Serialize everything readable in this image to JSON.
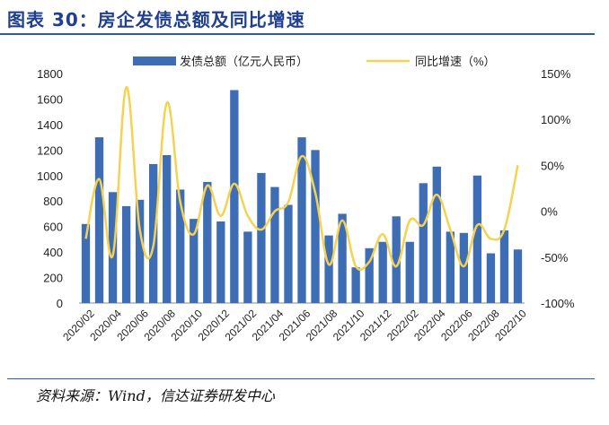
{
  "title": "图表 30：房企发债总额及同比增速",
  "source": "资料来源：Wind，信达证券研发中心",
  "colors": {
    "bar": "#3d6db5",
    "line": "#f5d250",
    "title": "#1f3f8f",
    "rule": "#2e5aa8"
  },
  "chart_data": {
    "type": "bar",
    "left_axis": {
      "ticks": [
        "0",
        "200",
        "400",
        "600",
        "800",
        "1000",
        "1200",
        "1400",
        "1600",
        "1800"
      ],
      "ylim": [
        0,
        1800
      ]
    },
    "right_axis": {
      "ticks": [
        "-100%",
        "-50%",
        "0%",
        "50%",
        "100%",
        "150%"
      ],
      "ylim": [
        -100,
        150
      ]
    },
    "x_tick_labels": [
      "2020/02",
      "2020/04",
      "2020/06",
      "2020/08",
      "2020/10",
      "2020/12",
      "2021/02",
      "2021/04",
      "2021/06",
      "2021/08",
      "2021/10",
      "2021/12",
      "2022/02",
      "2022/04",
      "2022/06",
      "2022/08",
      "2022/10"
    ],
    "categories": [
      "2020/02",
      "2020/03",
      "2020/04",
      "2020/05",
      "2020/06",
      "2020/07",
      "2020/08",
      "2020/09",
      "2020/10",
      "2020/11",
      "2020/12",
      "2021/01",
      "2021/02",
      "2021/03",
      "2021/04",
      "2021/05",
      "2021/06",
      "2021/07",
      "2021/08",
      "2021/09",
      "2021/10",
      "2021/11",
      "2021/12",
      "2022/01",
      "2022/02",
      "2022/03",
      "2022/04",
      "2022/05",
      "2022/06",
      "2022/07",
      "2022/08",
      "2022/09",
      "2022/10"
    ],
    "series": [
      {
        "name": "发债总额（亿元人民币）",
        "type": "bar",
        "axis": "left",
        "values": [
          620,
          1300,
          870,
          760,
          810,
          1090,
          1160,
          890,
          660,
          950,
          640,
          1670,
          560,
          1020,
          910,
          770,
          1300,
          1200,
          530,
          700,
          280,
          430,
          480,
          680,
          480,
          940,
          1070,
          560,
          550,
          1000,
          390,
          570,
          420
        ]
      },
      {
        "name": "同比增速（%）",
        "type": "line",
        "axis": "right",
        "values": [
          -30,
          35,
          -48,
          135,
          -20,
          -38,
          118,
          10,
          -25,
          28,
          -5,
          30,
          -5,
          -20,
          0,
          10,
          60,
          20,
          -58,
          -10,
          -60,
          -55,
          -25,
          -60,
          -10,
          -15,
          18,
          -20,
          -60,
          -15,
          -30,
          -20,
          50
        ]
      }
    ]
  }
}
